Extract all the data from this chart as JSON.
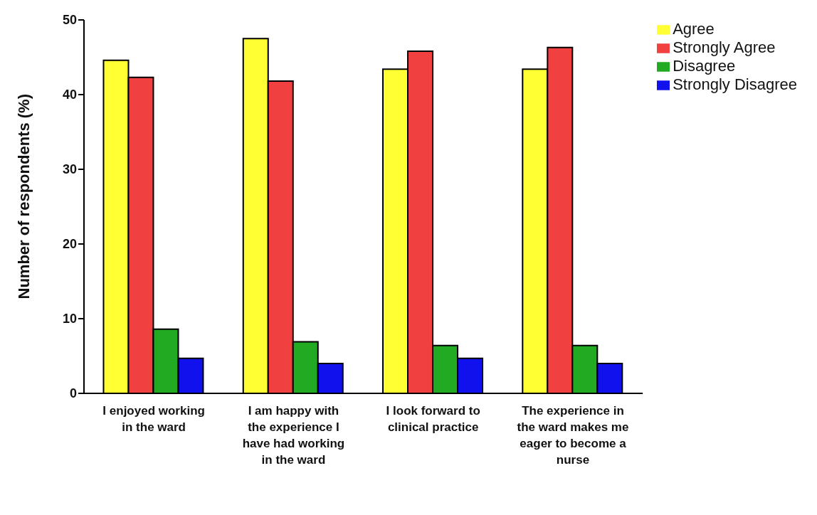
{
  "chart_data": {
    "type": "bar",
    "ylabel": "Number of respondents (%)",
    "categories": [
      "I enjoyed working in the ward",
      "I am happy with the experience I have had working in the ward",
      "I look forward to clinical practice",
      "The experience in the ward makes me eager to become a nurse"
    ],
    "series": [
      {
        "name": "Agree",
        "color": "#ffff33",
        "values": [
          44.6,
          47.5,
          43.4,
          43.4
        ]
      },
      {
        "name": "Strongly Agree",
        "color": "#f04040",
        "values": [
          42.3,
          41.8,
          45.8,
          46.3
        ]
      },
      {
        "name": "Disagree",
        "color": "#22aa22",
        "values": [
          8.6,
          6.9,
          6.4,
          6.4
        ]
      },
      {
        "name": "Strongly Disagree",
        "color": "#1111ee",
        "values": [
          4.7,
          4.0,
          4.7,
          4.0
        ]
      }
    ],
    "ylim": [
      0,
      50
    ],
    "yticks": [
      0,
      10,
      20,
      30,
      40,
      50
    ],
    "grid": false,
    "legend": "top right"
  }
}
